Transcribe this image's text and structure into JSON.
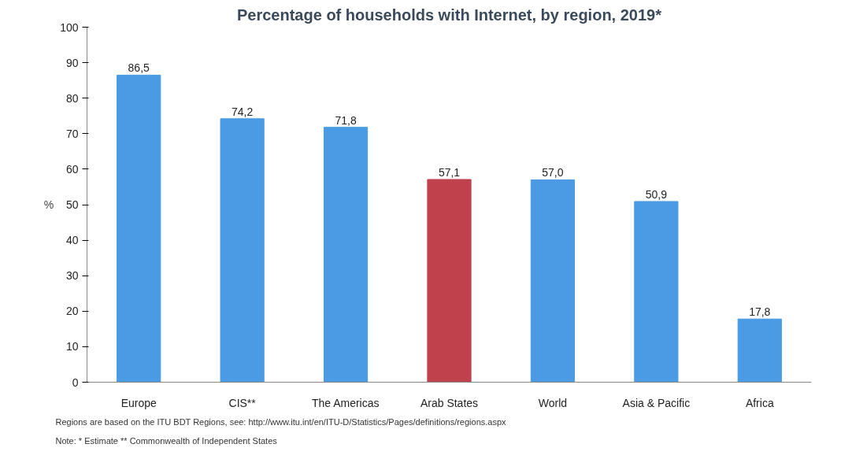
{
  "chart_data": {
    "type": "bar",
    "title": "Percentage of households with Internet, by region, 2019*",
    "categories": [
      "Europe",
      "CIS**",
      "The Americas",
      "Arab States",
      "World",
      "Asia & Pacific",
      "Africa"
    ],
    "values": [
      86.5,
      74.2,
      71.8,
      57.1,
      57.0,
      50.9,
      17.8
    ],
    "value_labels": [
      "86,5",
      "74,2",
      "71,8",
      "57,1",
      "57,0",
      "50,9",
      "17,8"
    ],
    "colors": [
      "#4a9be3",
      "#4a9be3",
      "#4a9be3",
      "#c0404c",
      "#4a9be3",
      "#4a9be3",
      "#4a9be3"
    ],
    "ylabel": "%",
    "ylim": [
      0,
      100
    ],
    "yticks": [
      0,
      10,
      20,
      30,
      40,
      50,
      60,
      70,
      80,
      90,
      100
    ],
    "grid": false,
    "annotations": [
      "Regions are based on the ITU BDT Regions, see: http://www.itu.int/en/ITU-D/Statistics/Pages/definitions/regions.aspx",
      "Note: * Estimate ** Commonwealth of Independent States"
    ]
  }
}
